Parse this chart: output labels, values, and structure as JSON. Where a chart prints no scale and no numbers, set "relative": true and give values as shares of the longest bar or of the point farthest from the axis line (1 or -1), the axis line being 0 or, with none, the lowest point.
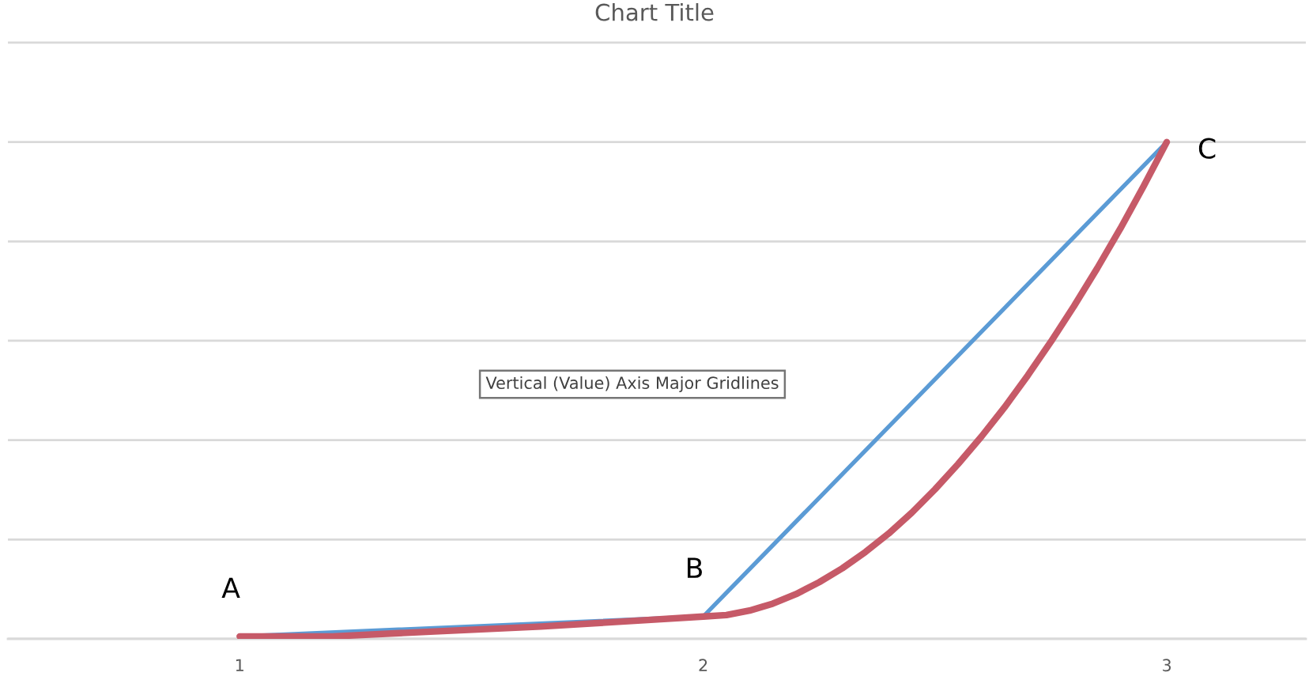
{
  "chart_data": {
    "type": "line",
    "title": "Chart Title",
    "x": [
      1,
      2,
      3
    ],
    "xlim": [
      0.5,
      3.3
    ],
    "xticks": [
      1,
      2,
      3
    ],
    "relative": true,
    "tick_labels": "x",
    "grid": "y",
    "series": [
      {
        "color": "#5b9bd5",
        "values": [
          0.005,
          0.045,
          1
        ]
      },
      {
        "color": "#c65a68",
        "x": [
          1,
          1.2,
          1.42,
          1.65,
          1.88,
          2,
          2.05,
          2.1,
          2.15,
          2.2,
          2.25,
          2.3,
          2.35,
          2.4,
          2.45,
          2.5,
          2.55,
          2.6,
          2.65,
          2.7,
          2.75,
          2.8,
          2.85,
          2.9,
          2.95,
          3
        ],
        "values": [
          0.005,
          0.005,
          0.015,
          0.025,
          0.038,
          0.045,
          0.048,
          0.057,
          0.071,
          0.09,
          0.114,
          0.142,
          0.175,
          0.212,
          0.254,
          0.301,
          0.352,
          0.407,
          0.466,
          0.53,
          0.598,
          0.67,
          0.746,
          0.826,
          0.911,
          1
        ]
      }
    ],
    "annotations": [
      {
        "text": "A",
        "x": 1,
        "y": 0.005
      },
      {
        "text": "B",
        "x": 2,
        "y": 0.045
      },
      {
        "text": "C",
        "x": 3,
        "y": 1
      },
      "Vertical (Value) Axis Major Gridlines"
    ]
  }
}
